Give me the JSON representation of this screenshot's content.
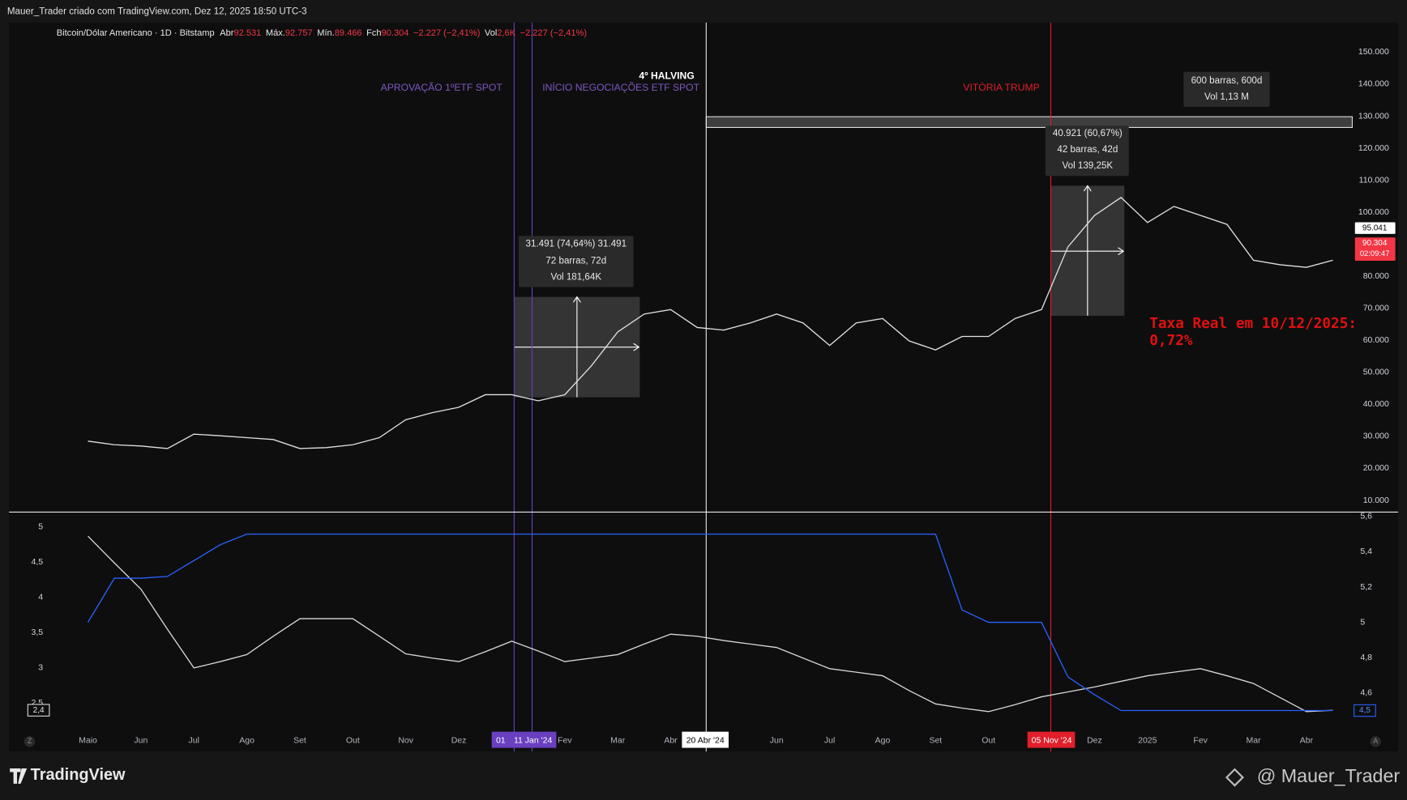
{
  "header": {
    "caption": "Mauer_Trader criado com TradingView.com, Dez 12, 2025 18:50 UTC-3"
  },
  "legend": {
    "symbol": "Bitcoin/Dólar Americano · 1D · Bitstamp",
    "open_label": "Abr",
    "open": "92.531",
    "high_label": "Máx.",
    "high": "92.757",
    "low_label": "Mín.",
    "low": "89.466",
    "close_label": "Fch",
    "close": "90.304",
    "change": "−2.227 (−2,41%)",
    "volume_label": "Vol",
    "volume": "2,6K",
    "volume_change": "−2.227 (−2,41%)"
  },
  "events": [
    {
      "label": "APROVAÇÃO 1ºETF SPOT",
      "date": "01"
    },
    {
      "label": "INÍCIO NEGOCIAÇÕES ETF SPOT",
      "date": "11 Jan '24"
    },
    {
      "label": "4º HALVING",
      "date": "20 Abr '24"
    },
    {
      "label": "VITÓRIA TRUMP",
      "date": "05 Nov '24"
    }
  ],
  "note": {
    "line1": "Taxa Real em 10/12/2025:",
    "line2": "0,72%"
  },
  "measurements": [
    {
      "lines": [
        "31.491 (74,64%) 31.491",
        "72 barras, 72d",
        "Vol 181,64K"
      ]
    },
    {
      "lines": [
        "40.921 (60,67%)",
        "42 barras, 42d",
        "Vol 139,25K"
      ]
    },
    {
      "lines": [
        "600 barras, 600d",
        "Vol 1,13 M"
      ]
    }
  ],
  "axis_buttons": [
    "Z",
    "A"
  ],
  "chart_data": [
    {
      "type": "line",
      "categories": [
        "Maio",
        null,
        "Jun",
        null,
        "Jul",
        null,
        "Ago",
        null,
        "Set",
        null,
        "Out",
        null,
        "Nov",
        null,
        "Dez",
        null,
        null,
        null,
        "Fev",
        null,
        "Mar",
        null,
        "Abr",
        null,
        null,
        null,
        "Jun",
        null,
        "Jul",
        null,
        "Ago",
        null,
        "Set",
        null,
        "Out",
        null,
        null,
        null,
        "Dez",
        null,
        "2025",
        null,
        "Fev",
        null,
        "Mar",
        null,
        "Abr",
        null
      ],
      "series": [
        {
          "color": "#e0e0e0",
          "values": [
            28500,
            27400,
            27000,
            26200,
            30700,
            30200,
            29600,
            29000,
            26200,
            26500,
            27400,
            29600,
            35200,
            37400,
            39100,
            43000,
            43000,
            41100,
            43000,
            52000,
            62600,
            68200,
            69600,
            64000,
            63200,
            65400,
            68200,
            65400,
            58400,
            65400,
            66800,
            59800,
            57000,
            61200,
            61200,
            66800,
            69600,
            89200,
            99000,
            104600,
            96800,
            101800,
            99000,
            96200,
            85000,
            83600,
            82800,
            85000
          ]
        }
      ],
      "ylim": [
        6640,
        159240
      ],
      "yticks": [
        {
          "value": 10000,
          "label": "10.000"
        },
        {
          "value": 20000,
          "label": "20.000"
        },
        {
          "value": 30000,
          "label": "30.000"
        },
        {
          "value": 40000,
          "label": "40.000"
        },
        {
          "value": 50000,
          "label": "50.000"
        },
        {
          "value": 60000,
          "label": "60.000"
        },
        {
          "value": 70000,
          "label": "70.000"
        },
        {
          "value": 80000,
          "label": "80.000"
        },
        {
          "value": 90000,
          "label": "90.000"
        },
        {
          "value": 100000,
          "label": "100.000"
        },
        {
          "value": 110000,
          "label": "110.000"
        },
        {
          "value": 120000,
          "label": "120.000"
        },
        {
          "value": 130000,
          "label": "130.000"
        },
        {
          "value": 140000,
          "label": "140.000"
        },
        {
          "value": 150000,
          "label": "150.000"
        }
      ],
      "price_tags": [
        {
          "value": 95041,
          "label": "95.041",
          "color": "#ffffff"
        },
        {
          "value": 90304,
          "label": "90.304",
          "countdown": "02:09:47",
          "color": "#f23645"
        }
      ],
      "grid": false
    },
    {
      "type": "line",
      "series": [
        {
          "color": "#d8d8d8",
          "values": [
            4.87,
            4.49,
            4.12,
            3.55,
            3.0,
            3.09,
            3.19,
            3.45,
            3.7,
            3.7,
            3.7,
            3.45,
            3.2,
            3.14,
            3.09,
            3.23,
            3.38,
            3.24,
            3.09,
            3.14,
            3.19,
            3.34,
            3.48,
            3.45,
            3.39,
            3.34,
            3.29,
            3.14,
            2.99,
            2.94,
            2.89,
            2.68,
            2.49,
            2.43,
            2.38,
            2.48,
            2.59,
            2.66,
            2.73,
            2.81,
            2.89,
            2.94,
            2.99,
            2.89,
            2.78,
            2.58,
            2.38,
            2.4
          ],
          "last_label": {
            "value": 2.4,
            "label": "2,4"
          }
        },
        {
          "color": "#2962ff",
          "axis": "y2",
          "values": [
            5.0,
            5.25,
            5.25,
            5.26,
            5.35,
            5.44,
            5.5,
            5.5,
            5.5,
            5.5,
            5.5,
            5.5,
            5.5,
            5.5,
            5.5,
            5.5,
            5.5,
            5.5,
            5.5,
            5.5,
            5.5,
            5.5,
            5.5,
            5.5,
            5.5,
            5.5,
            5.5,
            5.5,
            5.5,
            5.5,
            5.5,
            5.5,
            5.5,
            5.07,
            5.0,
            5.0,
            5.0,
            4.69,
            4.59,
            4.5,
            4.5,
            4.5,
            4.5,
            4.5,
            4.5,
            4.5,
            4.5,
            4.5
          ],
          "last_label": {
            "value": 4.5,
            "label": "4,5"
          }
        }
      ],
      "ylim": [
        2.07,
        5.2
      ],
      "yticks": [
        {
          "value": 2.5,
          "label": "2,5"
        },
        3,
        {
          "value": 3.5,
          "label": "3,5"
        },
        4,
        {
          "value": 4.5,
          "label": "4,5"
        },
        5
      ],
      "y2lim": [
        4.37,
        5.62
      ],
      "y2ticks": [
        {
          "value": 4.6,
          "label": "4,6"
        },
        {
          "value": 4.8,
          "label": "4,8"
        },
        5,
        {
          "value": 5.2,
          "label": "5,2"
        },
        {
          "value": 5.4,
          "label": "5,4"
        },
        {
          "value": 5.6,
          "label": "5,6"
        }
      ],
      "grid": false
    }
  ],
  "footer": {
    "logo": "TradingView",
    "author": "@ Mauer_Trader"
  }
}
